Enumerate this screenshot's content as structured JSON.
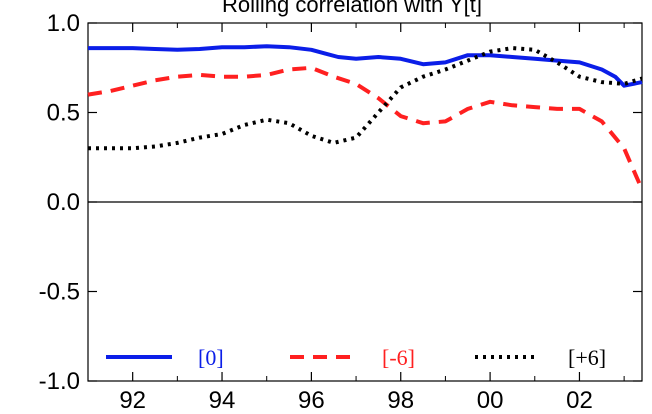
{
  "chart_data": {
    "type": "line",
    "title": "Rolling correlation with Y[t]",
    "xlabel": "",
    "ylabel": "",
    "xlim": [
      1991,
      2003.4
    ],
    "ylim": [
      -1.0,
      1.0
    ],
    "grid": false,
    "legend_position": "bottom",
    "x_ticks": [
      {
        "value": 1992,
        "label": "92"
      },
      {
        "value": 1994,
        "label": "94"
      },
      {
        "value": 1996,
        "label": "96"
      },
      {
        "value": 1998,
        "label": "98"
      },
      {
        "value": 2000,
        "label": "00"
      },
      {
        "value": 2002,
        "label": "02"
      }
    ],
    "y_ticks": [
      {
        "value": 1.0,
        "label": "1.0"
      },
      {
        "value": 0.5,
        "label": "0.5"
      },
      {
        "value": 0.0,
        "label": "0.0"
      },
      {
        "value": -0.5,
        "label": "-0.5"
      },
      {
        "value": -1.0,
        "label": "-1.0"
      }
    ],
    "series": [
      {
        "name": "[0]",
        "color": "#0b1ee8",
        "style": "solid",
        "x": [
          1991.0,
          1991.5,
          1992.0,
          1992.5,
          1993.0,
          1993.5,
          1994.0,
          1994.5,
          1995.0,
          1995.5,
          1996.0,
          1996.3,
          1996.6,
          1997.0,
          1997.5,
          1998.0,
          1998.5,
          1999.0,
          1999.5,
          2000.0,
          2000.5,
          2001.0,
          2001.5,
          2002.0,
          2002.5,
          2002.8,
          2003.0,
          2003.4
        ],
        "y": [
          0.86,
          0.86,
          0.86,
          0.855,
          0.85,
          0.855,
          0.865,
          0.865,
          0.87,
          0.865,
          0.85,
          0.83,
          0.81,
          0.8,
          0.81,
          0.8,
          0.77,
          0.78,
          0.82,
          0.82,
          0.81,
          0.8,
          0.79,
          0.78,
          0.74,
          0.7,
          0.65,
          0.67
        ]
      },
      {
        "name": "[-6]",
        "color": "#ff2020",
        "style": "dashed",
        "x": [
          1991.0,
          1991.5,
          1992.0,
          1992.5,
          1993.0,
          1993.5,
          1994.0,
          1994.5,
          1995.0,
          1995.5,
          1996.0,
          1996.5,
          1997.0,
          1997.5,
          1998.0,
          1998.5,
          1999.0,
          1999.5,
          2000.0,
          2000.5,
          2001.0,
          2001.5,
          2002.0,
          2002.5,
          2003.0,
          2003.4
        ],
        "y": [
          0.6,
          0.62,
          0.65,
          0.68,
          0.7,
          0.71,
          0.7,
          0.7,
          0.71,
          0.74,
          0.75,
          0.7,
          0.66,
          0.58,
          0.48,
          0.44,
          0.45,
          0.52,
          0.56,
          0.54,
          0.53,
          0.52,
          0.52,
          0.45,
          0.3,
          0.07
        ]
      },
      {
        "name": "[+6]",
        "color": "#000000",
        "style": "dotted",
        "x": [
          1991.0,
          1991.5,
          1992.0,
          1992.5,
          1993.0,
          1993.5,
          1994.0,
          1994.5,
          1995.0,
          1995.5,
          1996.0,
          1996.5,
          1997.0,
          1997.5,
          1998.0,
          1998.5,
          1999.0,
          1999.5,
          2000.0,
          2000.5,
          2001.0,
          2001.5,
          2002.0,
          2002.5,
          2003.0,
          2003.4
        ],
        "y": [
          0.3,
          0.3,
          0.3,
          0.31,
          0.33,
          0.36,
          0.38,
          0.43,
          0.46,
          0.44,
          0.37,
          0.33,
          0.36,
          0.5,
          0.64,
          0.7,
          0.74,
          0.79,
          0.84,
          0.86,
          0.85,
          0.78,
          0.7,
          0.67,
          0.66,
          0.69
        ]
      }
    ]
  }
}
